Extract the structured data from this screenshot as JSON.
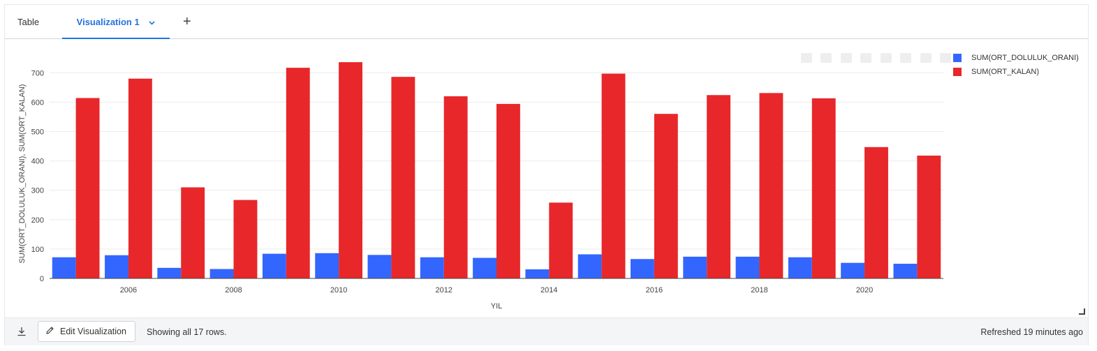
{
  "tabs": {
    "table_label": "Table",
    "visualization_label": "Visualization 1",
    "add_label": "+"
  },
  "footer": {
    "edit_label": "Edit Visualization",
    "rows_text": "Showing all 17 rows.",
    "refreshed_text": "Refreshed 19 minutes ago"
  },
  "icons": {
    "download": "download-icon",
    "pencil": "pencil-icon",
    "chevron": "chevron-down-icon"
  },
  "chart_data": {
    "type": "bar",
    "xlabel": "YIL",
    "ylabel": "SUM(ORT_DOLULUK_ORANI), SUM(ORT_KALAN)",
    "x": [
      2005,
      2006,
      2007,
      2008,
      2009,
      2010,
      2011,
      2012,
      2013,
      2014,
      2015,
      2016,
      2017,
      2018,
      2019,
      2020,
      2021
    ],
    "x_ticks": [
      2006,
      2008,
      2010,
      2012,
      2014,
      2016,
      2018,
      2020
    ],
    "ylim": [
      0,
      760
    ],
    "y_ticks": [
      0,
      100,
      200,
      300,
      400,
      500,
      600,
      700
    ],
    "grid": true,
    "legend_position": "top-right",
    "series": [
      {
        "name": "SUM(ORT_DOLULUK_ORANI)",
        "color": "#3366ff",
        "values": [
          72,
          79,
          36,
          32,
          84,
          86,
          80,
          72,
          70,
          31,
          82,
          66,
          74,
          74,
          72,
          53,
          50
        ]
      },
      {
        "name": "SUM(ORT_KALAN)",
        "color": "#e8272a",
        "values": [
          614,
          680,
          310,
          267,
          717,
          736,
          686,
          620,
          594,
          258,
          697,
          560,
          624,
          631,
          613,
          447,
          418
        ]
      }
    ]
  }
}
